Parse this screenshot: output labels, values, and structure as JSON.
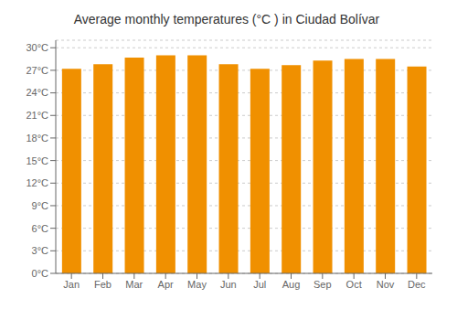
{
  "chart_data": {
    "type": "bar",
    "title": "Average monthly temperatures (°C ) in Ciudad Bolívar",
    "categories": [
      "Jan",
      "Feb",
      "Mar",
      "Apr",
      "May",
      "Jun",
      "Jul",
      "Aug",
      "Sep",
      "Oct",
      "Nov",
      "Dec"
    ],
    "values": [
      27.2,
      27.8,
      28.7,
      29.0,
      29.0,
      27.8,
      27.2,
      27.7,
      28.3,
      28.5,
      28.5,
      27.5
    ],
    "color": "#F09000",
    "ylim": [
      0,
      31
    ],
    "yticks": [
      {
        "value": 0,
        "label": "0°C"
      },
      {
        "value": 3,
        "label": "3°C"
      },
      {
        "value": 6,
        "label": "6°C"
      },
      {
        "value": 9,
        "label": "9°C"
      },
      {
        "value": 12,
        "label": "12°C"
      },
      {
        "value": 15,
        "label": "15°C"
      },
      {
        "value": 18,
        "label": "18°C"
      },
      {
        "value": 21,
        "label": "21°C"
      },
      {
        "value": 24,
        "label": "24°C"
      },
      {
        "value": 27,
        "label": "27°C"
      },
      {
        "value": 30,
        "label": "30°C"
      }
    ],
    "grid": true
  }
}
